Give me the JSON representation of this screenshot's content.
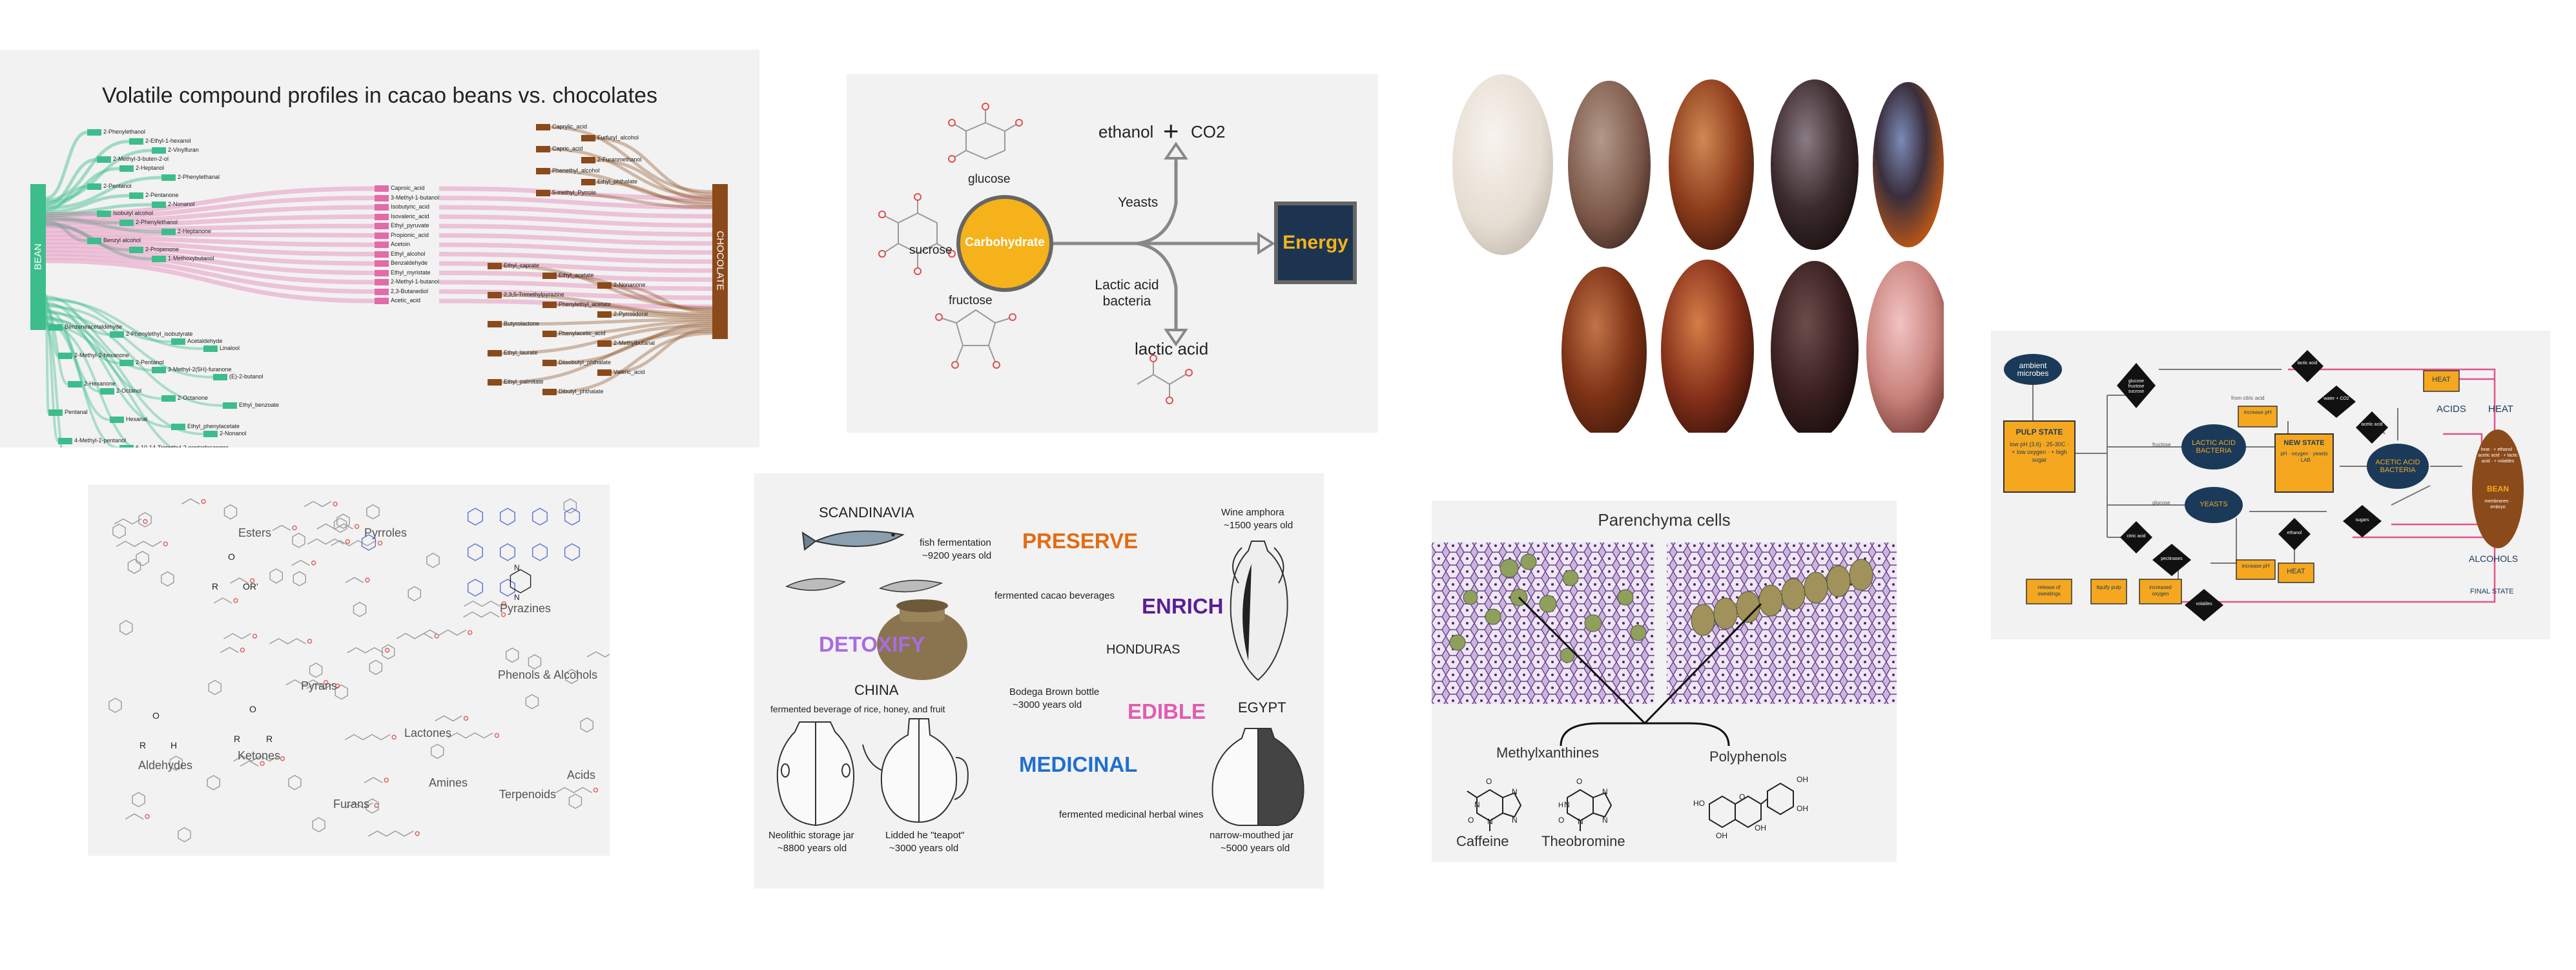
{
  "sankey": {
    "title": "Volatile compound profiles in cacao beans vs. chocolates",
    "left_node": "BEAN",
    "right_node": "CHOCOLATE",
    "bean_labels_top": [
      "2-Phenylethanol",
      "2-Ethyl-1-hexanol",
      "2-Vinylfuran",
      "2-Methyl-3-buten-2-ol",
      "2-Heptanol",
      "2-Phenylethanal",
      "2-Pentanol",
      "2-Pentanone",
      "2-Nonanol",
      "Isobutyl alcohol",
      "2-Phenylethanol",
      "2-Heptanone",
      "Benzyl alcohol",
      "2-Propenone",
      "1-Methoxybutanol"
    ],
    "shared_labels": [
      "Caproic_acid",
      "3-Methyl-1-butanol",
      "Isobutyric_acid",
      "Isovaleric_acid",
      "Ethyl_pyruvate",
      "Propionic_acid",
      "Acetoin",
      "Ethyl_alcohol",
      "Benzaldehyde",
      "Ethyl_myristate",
      "2-Methyl-1-butanol",
      "2,3-Butanediol",
      "Acetic_acid"
    ],
    "bean_labels_bottom": [
      "Benzeneacetaldehyde",
      "2-Phenylethyl_isobutyrate",
      "Acetaldehyde",
      "Linalool",
      "2-Methyl-2-hexanone",
      "2-Pentanol",
      "3-Methyl-2(5H)-furanone",
      "(E)-2-butanol",
      "2-Hexanone",
      "2-Octanol",
      "2-Octanone",
      "Ethyl_benzoate",
      "Pentanal",
      "Hexanal",
      "Ethyl_phenylacetate",
      "2-Nonanol",
      "4-Methyl-2-pentanol",
      "6-10-14-Trimethyl-2-pentadecanone",
      "1-Butanol",
      "Ethyl_acetate",
      "2,3-Butanedione"
    ],
    "choc_labels_top": [
      "Caprylic_acid",
      "Furfuryl_alcohol",
      "Capric_acid",
      "2-Furanmethanol",
      "Phenethyl_alcohol",
      "Ethyl_phthalate",
      "5-methyl_Pyrrole"
    ],
    "choc_labels_bottom": [
      "Ethyl_caprate",
      "Ethyl_acetate",
      "2-Nonanone",
      "2,3,5-Trimethylpyrazine",
      "Phenylethyl_acetate",
      "2-Pyrrolidone",
      "Butyrolactone",
      "Phenylacetic_acid",
      "2-Methylbutanal",
      "Ethyl_laurate",
      "Diisobutyl_phthalate",
      "Valeric_acid",
      "Ethyl_palmitate",
      "Dibutyl_phthalate"
    ]
  },
  "energy": {
    "glucose": "glucose",
    "sucrose": "sucrose",
    "fructose": "fructose",
    "carbohydrate": "Carbohydrate",
    "energy": "Energy",
    "ethanol": "ethanol",
    "plus": "+",
    "co2": "CO2",
    "yeasts": "Yeasts",
    "lab_line1": "Lactic acid",
    "lab_line2": "bacteria",
    "lactic_acid": "lactic acid"
  },
  "compounds": {
    "esters": "Esters",
    "pyrroles": "Pyrroles",
    "pyrazines": "Pyrazines",
    "pyrans": "Pyrans",
    "phenols": "Phenols & Alcohols",
    "lactones": "Lactones",
    "aldehydes": "Aldehydes",
    "ketones": "Ketones",
    "furans": "Furans",
    "amines": "Amines",
    "terpenoids": "Terpenoids",
    "acids": "Acids",
    "atom_o": "O",
    "atom_or": "OR'",
    "atom_r": "R",
    "atom_h": "H",
    "atom_n": "N"
  },
  "history": {
    "scandinavia": "SCANDINAVIA",
    "fish_line1": "fish fermentation",
    "fish_line2": "~9200 years old",
    "preserve": "PRESERVE",
    "amphora_line1": "Wine amphora",
    "amphora_line2": "~1500 years old",
    "cacao_bev": "fermented cacao beverages",
    "enrich": "ENRICH",
    "detoxify": "DETOXIFY",
    "honduras": "HONDURAS",
    "bodega_line1": "Bodega Brown bottle",
    "bodega_line2": "~3000 years old",
    "china": "CHINA",
    "china_sub": "fermented beverage of rice, honey, and fruit",
    "edible": "EDIBLE",
    "egypt": "EGYPT",
    "medicinal": "MEDICINAL",
    "herbal": "fermented medicinal herbal wines",
    "jar_line1": "Neolithic storage jar",
    "jar_line2": "~8800 years old",
    "teapot_line1": "Lidded he \"teapot\"",
    "teapot_line2": "~3000 years old",
    "narrow_line1": "narrow-mouthed jar",
    "narrow_line2": "~5000 years old"
  },
  "cells": {
    "title": "Parenchyma cells",
    "methyl": "Methylxanthines",
    "poly": "Polyphenols",
    "caffeine": "Caffeine",
    "theobromine": "Theobromine",
    "atom_o": "O",
    "atom_n": "N",
    "atom_h": "H",
    "atom_oh": "OH",
    "atom_ho": "HO"
  },
  "process": {
    "ambient": "ambient microbes",
    "pulp_title": "PULP STATE",
    "pulp_sub": "low pH (3.6) · 25-30C · + low oxygen · + high sugar",
    "glucose_fructose": "glucose fructose sucrose",
    "from_citric": "from citric acid",
    "increase_ph": "increase pH",
    "fructose": "fructose",
    "lab": "LACTIC ACID BACTERIA",
    "new_state": "NEW STATE",
    "new_state_sub": "pH · oxygen · yeasts · LAB",
    "aab": "ACETIC ACID BACTERIA",
    "glucose": "glucose",
    "yeasts": "YEASTS",
    "citric_acid": "citric acid",
    "pectinases": "pectinases",
    "ethanol": "ethanol",
    "sugars": "sugars",
    "lactic_acid": "lactic acid",
    "acetic_acid": "acetic acid",
    "water_co2": "water + CO2",
    "heat_top": "HEAT",
    "heat_mid": "HEAT",
    "heat_right": "HEAT",
    "acids": "ACIDS",
    "bean_title": "BEAN",
    "bean_list": "+ heat · + ethanol · + acetic acid · + lactic acid · + volatiles",
    "bean_sub": "membranes · embryo",
    "alcohols": "ALCOHOLS",
    "final_state": "FINAL STATE",
    "release": "release of sweatings",
    "liquify": "liquify pulp",
    "increased_oxygen": "increased oxygen",
    "increase_ph2": "increase pH",
    "volatiles": "volatiles"
  },
  "colors": {
    "bean_green": "#3dbd8c",
    "choc_brown": "#8b4a1a",
    "pink_flow": "#e36ba8",
    "carb_gold": "#f5b21b",
    "energy_navy": "#1c3450",
    "preserve_orange": "#e26c13",
    "enrich_purple": "#5a1e96",
    "detox_violet": "#a96ce0",
    "edible_pink": "#e25bb0",
    "medicinal_blue": "#1f6fd1",
    "process_navy": "#1b3a5a",
    "process_gold": "#f5a81f",
    "process_pink": "#e0558d"
  }
}
